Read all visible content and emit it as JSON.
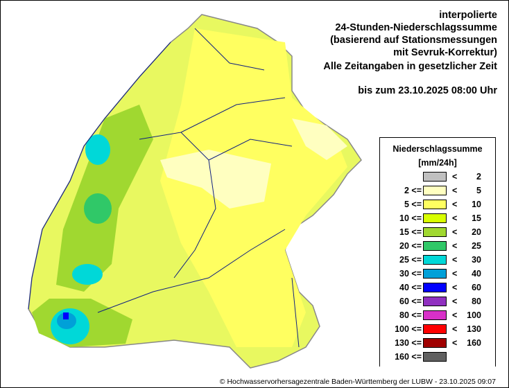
{
  "title_lines": [
    "interpolierte",
    "24-Stunden-Niederschlagssumme",
    "(basierend auf Stationsmessungen",
    "mit Sevruk-Korrektur)",
    "Alle Zeitangaben in gesetzlicher Zeit"
  ],
  "valid_until": "bis zum 23.10.2025 08:00 Uhr",
  "legend": {
    "title": "Niederschlagssumme",
    "unit": "[mm/24h]",
    "classes": [
      {
        "lo": "",
        "hi": "2",
        "color": "#c0c0c0"
      },
      {
        "lo": "2",
        "hi": "5",
        "color": "#ffffc0"
      },
      {
        "lo": "5",
        "hi": "10",
        "color": "#ffff60"
      },
      {
        "lo": "10",
        "hi": "15",
        "color": "#d8ff00"
      },
      {
        "lo": "15",
        "hi": "20",
        "color": "#a0d830"
      },
      {
        "lo": "20",
        "hi": "25",
        "color": "#30c868"
      },
      {
        "lo": "25",
        "hi": "30",
        "color": "#00d8d8"
      },
      {
        "lo": "30",
        "hi": "40",
        "color": "#00a0d8"
      },
      {
        "lo": "40",
        "hi": "60",
        "color": "#0000ff"
      },
      {
        "lo": "60",
        "hi": "80",
        "color": "#9030c0"
      },
      {
        "lo": "80",
        "hi": "100",
        "color": "#d830c8"
      },
      {
        "lo": "100",
        "hi": "130",
        "color": "#ff0000"
      },
      {
        "lo": "130",
        "hi": "160",
        "color": "#a00000"
      },
      {
        "lo": "160",
        "hi": "",
        "color": "#606060"
      }
    ]
  },
  "footer": "© Hochwasservorhersagezentrale Baden-Württemberg der LUBW - 23.10.2025 09:07"
}
